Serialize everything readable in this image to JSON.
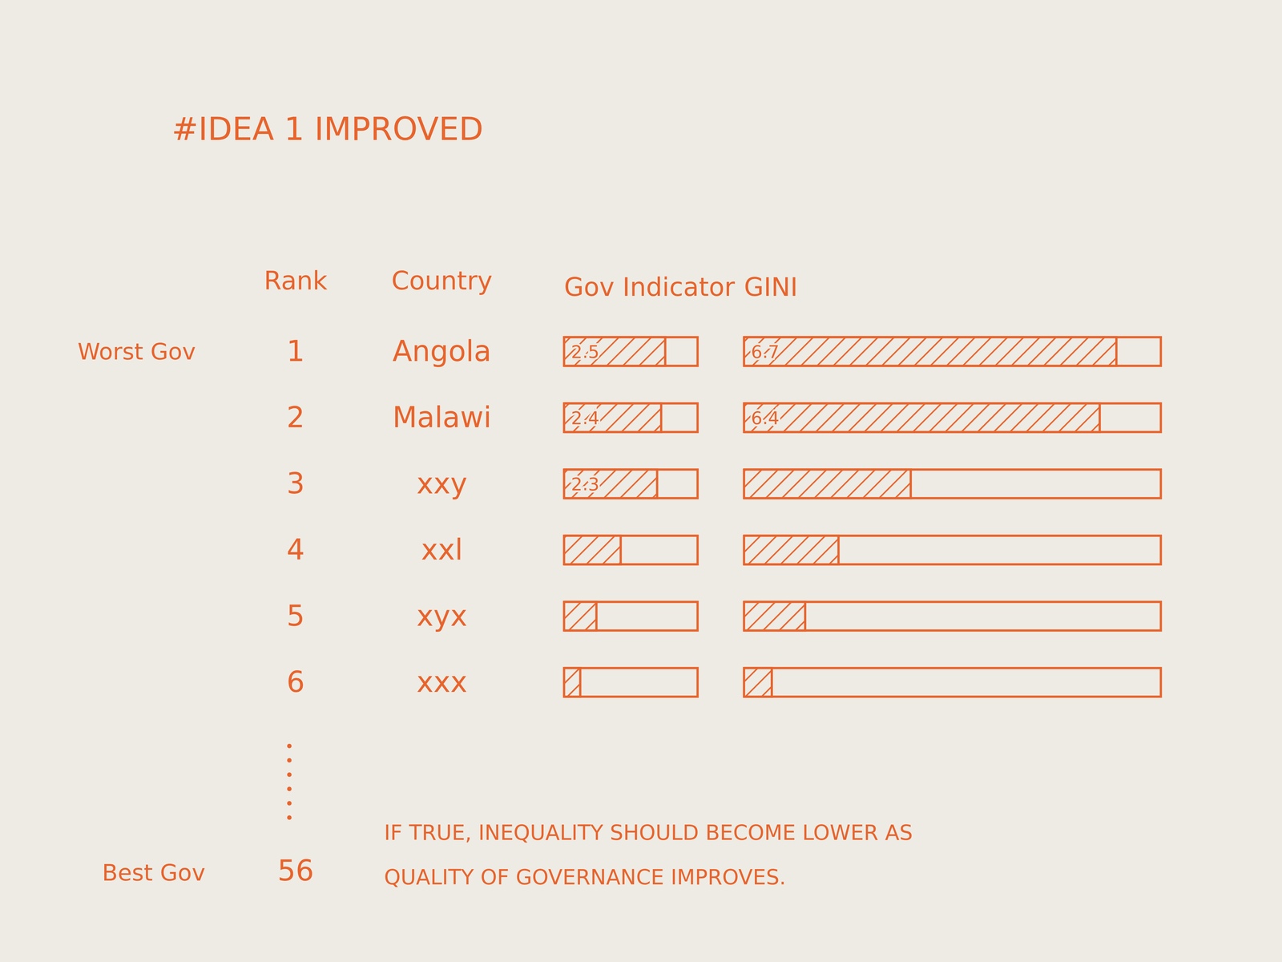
{
  "title": "#IDEA 1 IMPROVED",
  "headers": {
    "rank": "Rank",
    "country": "Country"
  },
  "ranks": [
    1,
    2,
    3,
    4,
    5,
    6
  ],
  "last_rank": 56,
  "worst_label": "Worst Gov",
  "best_label": "Best Gov",
  "note": [
    "IF TRUE, INEQUALITY SHOULD BECOME LOWER AS",
    "QUALITY OF GOVERNANCE IMPROVES."
  ],
  "chart_data": [
    {
      "type": "bar",
      "orientation": "horizontal",
      "title": "Gov Indicator",
      "categories": [
        "Angola",
        "Malawi",
        "xxy",
        "xxl",
        "xyx",
        "xxx"
      ],
      "values": [
        2.5,
        2.4,
        2.3,
        1.4,
        0.8,
        0.4
      ],
      "value_labels": [
        "2.5",
        "2.4",
        "2.3",
        null,
        null,
        null
      ],
      "data_labels": true,
      "xlim": [
        0,
        3.3
      ],
      "tick_labels": false,
      "color": "#e8642c"
    },
    {
      "type": "bar",
      "orientation": "horizontal",
      "title": "GINI",
      "values": [
        6.7,
        6.4,
        3.0,
        1.7,
        1.1,
        0.5
      ],
      "value_labels": [
        "6.7",
        "6.4",
        null,
        null,
        null,
        null
      ],
      "data_labels": true,
      "xlim": [
        0,
        7.5
      ],
      "tick_labels": false,
      "color": "#e8642c"
    }
  ]
}
